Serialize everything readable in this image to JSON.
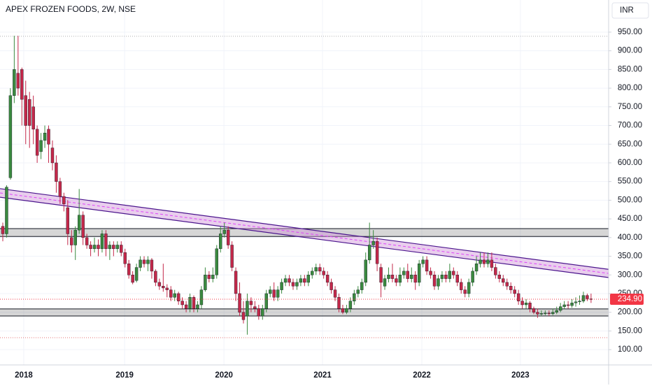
{
  "chart_data": {
    "type": "candlestick",
    "title": "APEX FROZEN FOODS, 2W, NSE",
    "currency": "INR",
    "open": [
      430,
      410,
      560,
      780,
      840,
      850,
      780,
      770,
      750,
      690,
      630,
      660,
      690,
      640,
      600,
      550,
      510,
      480,
      400,
      380,
      420,
      460,
      400,
      380,
      370,
      380,
      370,
      410,
      370,
      380,
      370,
      380,
      360,
      330,
      300,
      285,
      320,
      340,
      330,
      340,
      310,
      280,
      270,
      265,
      260,
      240,
      250,
      230,
      220,
      210,
      240,
      210,
      220,
      260,
      300,
      290,
      300,
      370,
      410,
      420,
      380,
      310,
      250,
      200,
      190,
      230,
      215,
      210,
      190,
      210,
      250,
      260,
      240,
      260,
      280,
      290,
      280,
      270,
      280,
      290,
      280,
      300,
      310,
      320,
      310,
      300,
      280,
      260,
      240,
      210,
      200,
      210,
      230,
      250,
      260,
      280,
      340,
      380,
      390,
      320,
      270,
      290,
      300,
      290,
      280,
      300,
      310,
      290,
      300,
      280,
      330,
      340,
      310,
      300,
      270,
      290,
      300,
      290,
      310,
      300,
      280,
      260,
      250,
      280,
      310,
      330,
      340,
      330,
      340,
      320,
      300,
      290,
      280,
      270,
      260,
      250,
      230,
      220,
      225,
      210,
      200,
      195,
      197,
      198,
      196,
      200,
      205,
      215,
      220,
      218,
      225,
      228,
      230,
      245,
      236
    ],
    "high": [
      440,
      540,
      800,
      940,
      940,
      855,
      820,
      790,
      780,
      700,
      680,
      700,
      700,
      660,
      620,
      560,
      520,
      500,
      420,
      430,
      530,
      470,
      410,
      390,
      400,
      395,
      420,
      420,
      390,
      390,
      390,
      390,
      370,
      340,
      310,
      330,
      350,
      350,
      350,
      345,
      315,
      290,
      330,
      275,
      270,
      260,
      255,
      240,
      230,
      250,
      245,
      230,
      270,
      320,
      310,
      320,
      380,
      430,
      440,
      430,
      390,
      320,
      280,
      230,
      250,
      240,
      230,
      220,
      220,
      260,
      270,
      280,
      270,
      290,
      300,
      300,
      290,
      290,
      300,
      300,
      310,
      320,
      330,
      330,
      320,
      310,
      290,
      270,
      250,
      220,
      220,
      240,
      260,
      270,
      290,
      360,
      440,
      420,
      400,
      330,
      300,
      320,
      330,
      300,
      320,
      320,
      330,
      320,
      310,
      340,
      350,
      350,
      320,
      310,
      300,
      310,
      310,
      330,
      320,
      310,
      290,
      270,
      290,
      320,
      350,
      360,
      360,
      360,
      360,
      330,
      310,
      300,
      290,
      280,
      270,
      260,
      240,
      235,
      230,
      215,
      210,
      205,
      205,
      205,
      210,
      215,
      225,
      230,
      230,
      235,
      240,
      245,
      255,
      250,
      250
    ],
    "low": [
      390,
      400,
      555,
      760,
      780,
      700,
      650,
      640,
      650,
      600,
      610,
      640,
      600,
      580,
      520,
      490,
      470,
      380,
      360,
      340,
      410,
      380,
      370,
      350,
      360,
      350,
      360,
      350,
      340,
      350,
      360,
      350,
      320,
      290,
      275,
      280,
      310,
      320,
      310,
      290,
      270,
      260,
      255,
      240,
      230,
      230,
      220,
      210,
      200,
      200,
      200,
      200,
      210,
      255,
      280,
      280,
      290,
      360,
      400,
      370,
      310,
      230,
      190,
      170,
      140,
      200,
      200,
      180,
      180,
      200,
      240,
      230,
      230,
      250,
      270,
      270,
      260,
      260,
      270,
      270,
      270,
      290,
      300,
      300,
      290,
      270,
      250,
      230,
      200,
      195,
      195,
      200,
      220,
      240,
      250,
      270,
      330,
      370,
      310,
      240,
      260,
      280,
      280,
      270,
      270,
      290,
      280,
      280,
      260,
      270,
      320,
      300,
      290,
      260,
      260,
      280,
      280,
      280,
      290,
      270,
      250,
      240,
      240,
      270,
      300,
      320,
      320,
      320,
      310,
      290,
      280,
      270,
      260,
      250,
      240,
      220,
      210,
      210,
      200,
      195,
      185,
      190,
      192,
      190,
      192,
      195,
      200,
      210,
      210,
      212,
      215,
      220,
      225,
      230,
      225
    ],
    "close": [
      410,
      535,
      780,
      850,
      800,
      770,
      700,
      700,
      690,
      620,
      660,
      680,
      650,
      600,
      550,
      510,
      490,
      410,
      380,
      420,
      460,
      400,
      380,
      370,
      380,
      370,
      410,
      370,
      380,
      370,
      380,
      360,
      330,
      300,
      280,
      320,
      340,
      330,
      340,
      310,
      280,
      270,
      265,
      260,
      240,
      250,
      230,
      220,
      210,
      240,
      210,
      220,
      260,
      300,
      290,
      300,
      370,
      410,
      420,
      380,
      320,
      250,
      200,
      180,
      230,
      220,
      210,
      190,
      210,
      250,
      260,
      240,
      260,
      280,
      290,
      280,
      270,
      280,
      290,
      280,
      300,
      310,
      320,
      310,
      300,
      280,
      260,
      240,
      210,
      200,
      210,
      230,
      250,
      260,
      280,
      340,
      380,
      390,
      330,
      280,
      290,
      300,
      290,
      280,
      300,
      310,
      290,
      300,
      280,
      330,
      340,
      310,
      300,
      270,
      290,
      300,
      290,
      310,
      300,
      280,
      260,
      250,
      280,
      310,
      330,
      340,
      330,
      340,
      320,
      300,
      290,
      280,
      270,
      260,
      250,
      230,
      220,
      225,
      210,
      200,
      195,
      197,
      198,
      196,
      200,
      205,
      215,
      220,
      218,
      225,
      228,
      230,
      245,
      236,
      234.9
    ],
    "up_color": "#3a8a3f",
    "down_color": "#c4284a",
    "xlim": [
      -0.73,
      158.6
    ],
    "xticks": [
      {
        "value": 5.49,
        "label": "2018"
      },
      {
        "value": 31.9,
        "label": "2019"
      },
      {
        "value": 57.9,
        "label": "2020"
      },
      {
        "value": 83.7,
        "label": "2021"
      },
      {
        "value": 109.7,
        "label": "2022"
      },
      {
        "value": 135.5,
        "label": "2023"
      }
    ],
    "ylim": [
      59,
      1036
    ],
    "yticks": [
      {
        "value": 100,
        "label": "100.00"
      },
      {
        "value": 150,
        "label": "150.00"
      },
      {
        "value": 200,
        "label": "200.00"
      },
      {
        "value": 250,
        "label": "250.00"
      },
      {
        "value": 300,
        "label": "300.00"
      },
      {
        "value": 350,
        "label": "350.00"
      },
      {
        "value": 400,
        "label": "400.00"
      },
      {
        "value": 450,
        "label": "450.00"
      },
      {
        "value": 500,
        "label": "500.00"
      },
      {
        "value": 550,
        "label": "550.00"
      },
      {
        "value": 600,
        "label": "600.00"
      },
      {
        "value": 650,
        "label": "650.00"
      },
      {
        "value": 700,
        "label": "700.00"
      },
      {
        "value": 750,
        "label": "750.00"
      },
      {
        "value": 800,
        "label": "800.00"
      },
      {
        "value": 850,
        "label": "850.00"
      },
      {
        "value": 900,
        "label": "900.00"
      },
      {
        "value": 950,
        "label": "950.00"
      }
    ],
    "grid": true,
    "zones": [
      [
        403,
        424
      ],
      [
        190,
        209
      ]
    ],
    "levels": [
      {
        "value": 939,
        "color": "#b0b0b0"
      },
      {
        "value": 132,
        "color": "#e57373"
      }
    ],
    "trend_channel": {
      "x": [
        -0.73,
        158.6
      ],
      "upper": [
        531,
        315
      ],
      "lower": [
        508,
        293
      ]
    },
    "last_price": {
      "value": 234.9,
      "label": "234.90",
      "color": "#f23645"
    }
  }
}
